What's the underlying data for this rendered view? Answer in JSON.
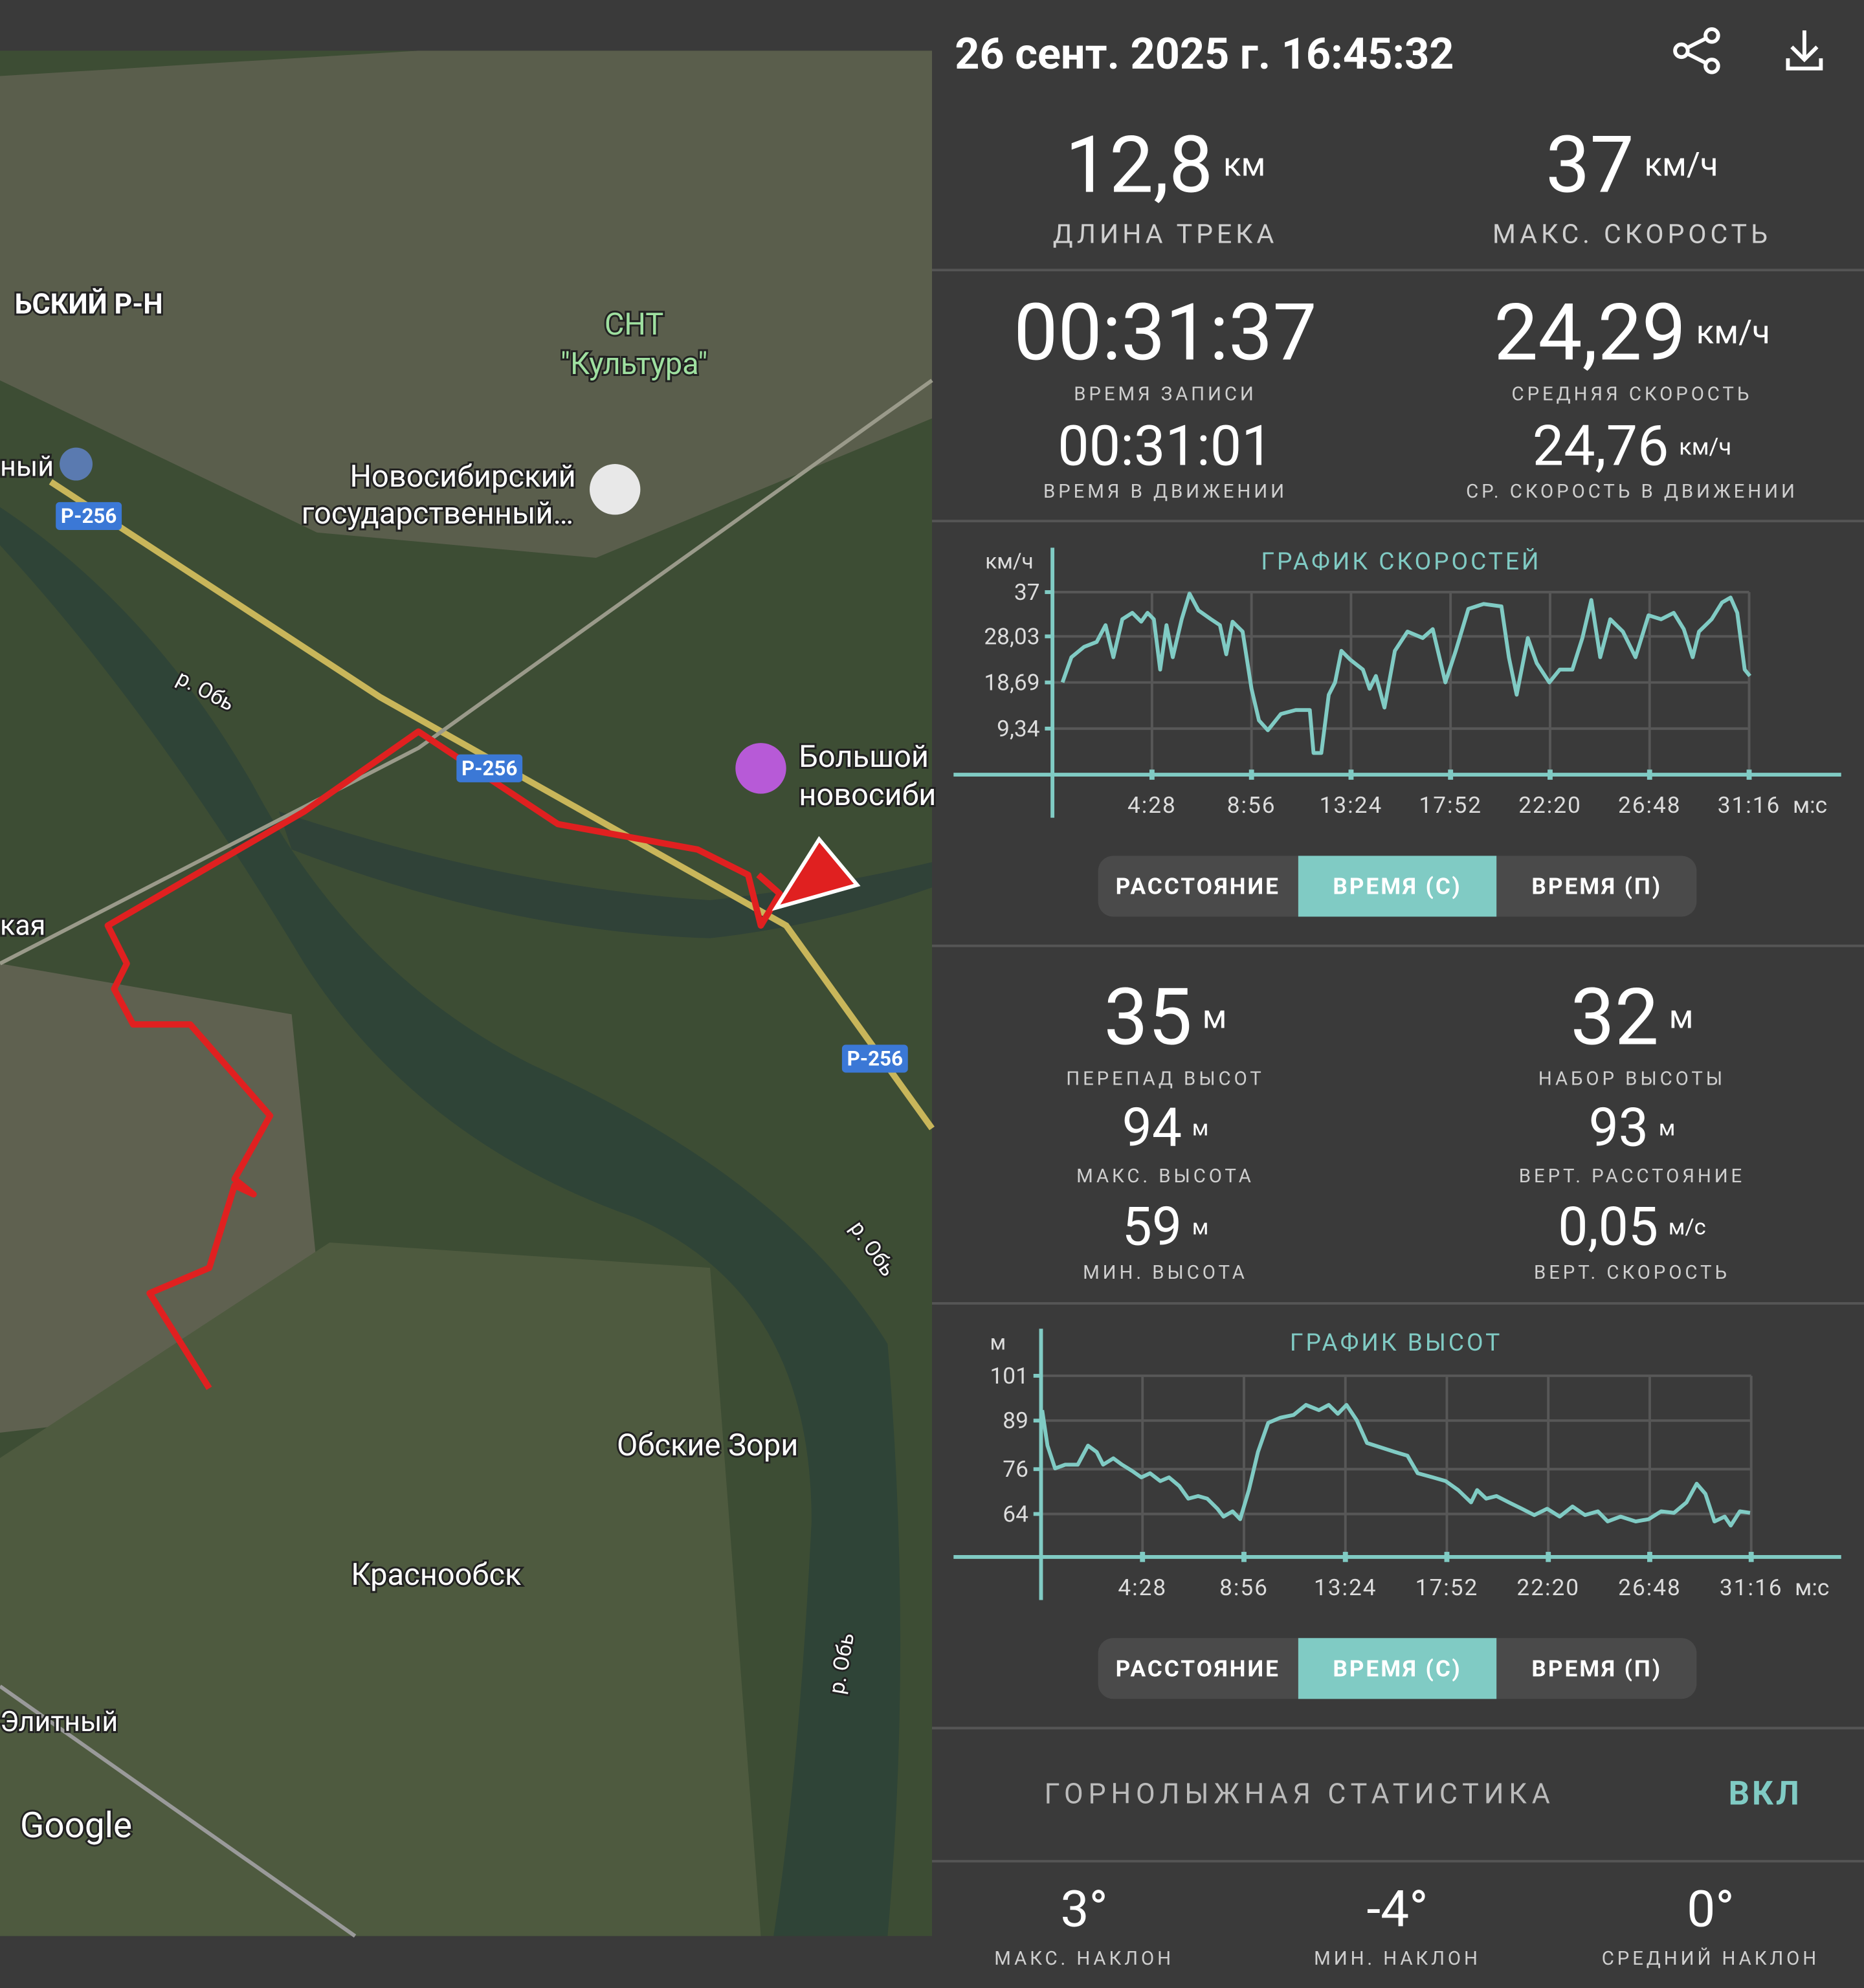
{
  "header": {
    "title": "26 сент. 2025 г. 16:45:32"
  },
  "map": {
    "labels": [
      "ЬСКИЙ Р-Н",
      "ный",
      "Р-256",
      "СНТ",
      "\"Культура\"",
      "Новосибирский",
      "государственный…",
      "р. Обь",
      "Р-256",
      "Большой",
      "новосиби",
      "кая",
      "Р-256",
      "р. Обь",
      "Обские Зори",
      "Краснообск",
      "р. Обь",
      "Элитный",
      "Google"
    ]
  },
  "summary": [
    {
      "value": "12,8",
      "unit": "км",
      "label": "ДЛИНА ТРЕКА"
    },
    {
      "value": "37",
      "unit": "км/ч",
      "label": "МАКС. СКОРОСТЬ"
    }
  ],
  "time_stats": [
    {
      "value": "00:31:37",
      "label": "ВРЕМЯ ЗАПИСИ"
    },
    {
      "value": "24,29",
      "unit": "км/ч",
      "label": "СРЕДНЯЯ СКОРОСТЬ"
    },
    {
      "value": "00:31:01",
      "label": "ВРЕМЯ В ДВИЖЕНИИ"
    },
    {
      "value": "24,76",
      "unit": "км/ч",
      "label": "СР. СКОРОСТЬ В ДВИЖЕНИИ"
    }
  ],
  "speed_chart": {
    "type": "line",
    "title": "ГРАФИК СКОРОСТЕЙ",
    "y_unit": "км/ч",
    "x_unit": "м:с",
    "color": "#80cbc4",
    "grid": true,
    "x": [
      27,
      51,
      85,
      119,
      143,
      164,
      188,
      215,
      239,
      256,
      273,
      290,
      307,
      324,
      348,
      369,
      393,
      427,
      451,
      468,
      485,
      512,
      536,
      556,
      580,
      615,
      655,
      693,
      703,
      724,
      744,
      761,
      778,
      802,
      836,
      854,
      871,
      894,
      922,
      956,
      997,
      1024,
      1058,
      1086,
      1120,
      1161,
      1209,
      1229,
      1250,
      1280,
      1304,
      1338,
      1366,
      1400,
      1427,
      1451,
      1475,
      1502,
      1536,
      1570,
      1605,
      1639,
      1673,
      1700,
      1724,
      1741,
      1775,
      1803,
      1826,
      1844,
      1864,
      1878
    ],
    "values": [
      18.7,
      23.8,
      25.9,
      26.9,
      30.3,
      23.8,
      31.5,
      32.8,
      31.0,
      32.8,
      31.5,
      21.3,
      30.3,
      23.8,
      31.5,
      36.7,
      33.3,
      31.5,
      30.3,
      24.4,
      31.0,
      29.0,
      17.4,
      11.0,
      9.0,
      12.3,
      13.1,
      13.1,
      4.4,
      4.4,
      16.2,
      18.7,
      25.1,
      23.3,
      21.3,
      17.4,
      20.0,
      13.6,
      25.1,
      29.0,
      27.7,
      29.5,
      18.7,
      25.1,
      33.6,
      34.6,
      34.1,
      23.8,
      16.2,
      27.7,
      22.6,
      18.7,
      21.3,
      21.3,
      27.7,
      35.4,
      23.8,
      31.5,
      29.0,
      23.8,
      32.3,
      31.5,
      32.8,
      29.5,
      23.8,
      29.0,
      31.5,
      34.9,
      35.9,
      32.8,
      21.3,
      20.0
    ],
    "xlim": [
      0,
      2117
    ],
    "ylim": [
      0,
      46
    ],
    "yticks": [
      {
        "value": 9.34,
        "label": "9,34"
      },
      {
        "value": 18.69,
        "label": "18,69"
      },
      {
        "value": 28.03,
        "label": "28,03"
      },
      37
    ],
    "xticks": [
      {
        "value": 268,
        "label": "4:28"
      },
      {
        "value": 536,
        "label": "8:56"
      },
      {
        "value": 804,
        "label": "13:24"
      },
      {
        "value": 1072,
        "label": "17:52"
      },
      {
        "value": 1340,
        "label": "22:20"
      },
      {
        "value": 1608,
        "label": "26:48"
      },
      {
        "value": 1876,
        "label": "31:16"
      }
    ],
    "buttons": [
      "РАССТОЯНИЕ",
      "ВРЕМЯ (С)",
      "ВРЕМЯ (П)"
    ],
    "selected": 1
  },
  "elevation_stats": [
    {
      "value": "35",
      "unit": "м",
      "label": "ПЕРЕПАД ВЫСОТ"
    },
    {
      "value": "32",
      "unit": "м",
      "label": "НАБОР ВЫСОТЫ"
    },
    {
      "value": "94",
      "unit": "м",
      "label": "МАКС. ВЫСОТА"
    },
    {
      "value": "93",
      "unit": "м",
      "label": "ВЕРТ. РАССТОЯНИЕ"
    },
    {
      "value": "59",
      "unit": "м",
      "label": "МИН. ВЫСОТА"
    },
    {
      "value": "0,05",
      "unit": "м/с",
      "label": "ВЕРТ. СКОРОСТЬ"
    }
  ],
  "altitude_chart": {
    "type": "line",
    "title": "ГРАФИК ВЫСОТ",
    "y_unit": "м",
    "x_unit": "м:с",
    "color": "#80cbc4",
    "grid": true,
    "x": [
      3,
      17,
      37,
      64,
      97,
      124,
      147,
      164,
      191,
      214,
      241,
      265,
      288,
      315,
      338,
      365,
      389,
      415,
      439,
      466,
      482,
      506,
      526,
      549,
      573,
      600,
      633,
      667,
      700,
      734,
      760,
      784,
      807,
      834,
      861,
      901,
      935,
      968,
      995,
      1035,
      1069,
      1102,
      1136,
      1152,
      1176,
      1203,
      1236,
      1270,
      1303,
      1337,
      1370,
      1404,
      1437,
      1471,
      1497,
      1531,
      1571,
      1605,
      1638,
      1672,
      1705,
      1732,
      1755,
      1779,
      1806,
      1822,
      1846,
      1873
    ],
    "values": [
      91.8,
      82.3,
      76.2,
      77.2,
      77.2,
      82.3,
      80.6,
      77.2,
      78.9,
      77.2,
      75.5,
      73.8,
      74.9,
      72.8,
      73.8,
      71.5,
      68.1,
      68.8,
      68.1,
      65.4,
      63.3,
      64.7,
      62.6,
      70.4,
      80.6,
      88.4,
      89.8,
      90.5,
      93.2,
      91.8,
      93.2,
      90.8,
      93.2,
      89.1,
      83.0,
      81.7,
      80.6,
      79.6,
      74.9,
      73.8,
      72.8,
      70.4,
      67.1,
      70.4,
      68.1,
      68.8,
      67.1,
      65.4,
      63.7,
      65.4,
      63.3,
      66.0,
      63.7,
      64.7,
      62.0,
      63.3,
      62.0,
      62.6,
      64.7,
      64.3,
      67.1,
      72.1,
      69.4,
      62.0,
      63.3,
      60.9,
      64.7,
      64.3
    ],
    "xlim": [
      0,
      2107
    ],
    "ylim": [
      52.5,
      113.6
    ],
    "yticks": [
      64,
      76,
      89,
      101
    ],
    "xticks": [
      {
        "value": 268,
        "label": "4:28"
      },
      {
        "value": 536,
        "label": "8:56"
      },
      {
        "value": 804,
        "label": "13:24"
      },
      {
        "value": 1072,
        "label": "17:52"
      },
      {
        "value": 1340,
        "label": "22:20"
      },
      {
        "value": 1608,
        "label": "26:48"
      },
      {
        "value": 1876,
        "label": "31:16"
      }
    ],
    "buttons": [
      "РАССТОЯНИЕ",
      "ВРЕМЯ (С)",
      "ВРЕМЯ (П)"
    ],
    "selected": 1
  },
  "ski": {
    "title": "ГОРНОЛЫЖНАЯ СТАТИСТИКА",
    "toggle": "ВКЛ",
    "stats": [
      {
        "value": "3°",
        "label": "МАКС. НАКЛОН"
      },
      {
        "value": "-4°",
        "label": "МИН. НАКЛОН"
      },
      {
        "value": "0°",
        "label": "СРЕДНИЙ НАКЛОН"
      }
    ]
  }
}
